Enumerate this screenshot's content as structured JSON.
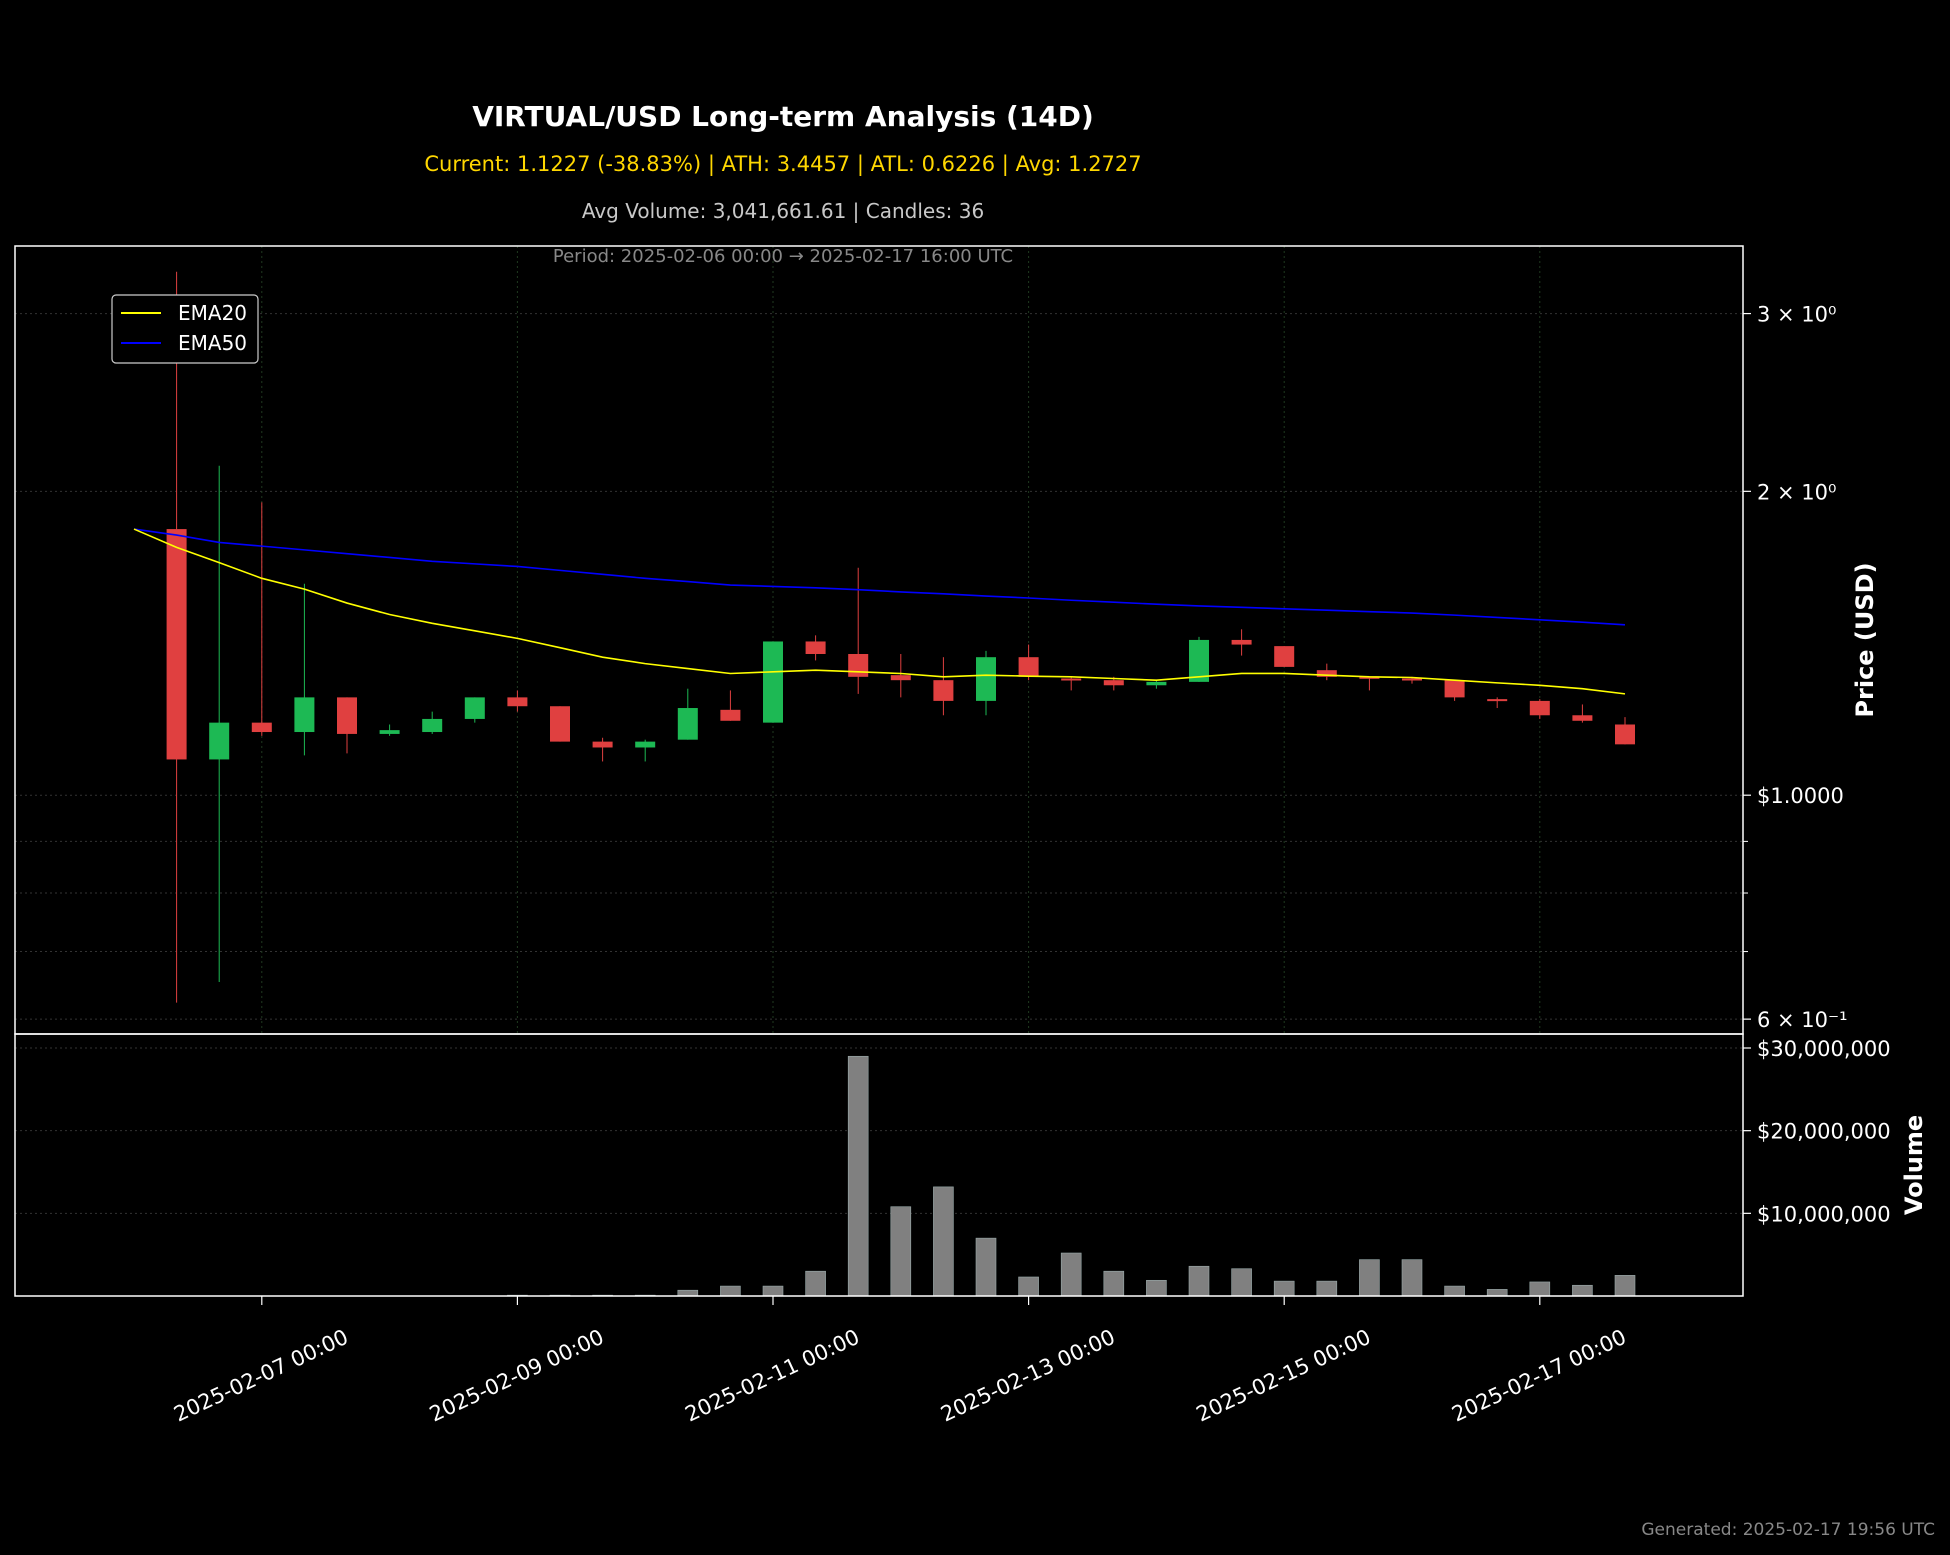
{
  "header": {
    "title": "VIRTUAL/USD Long-term Analysis (14D)",
    "stats": "Current: 1.1227 (-38.83%) | ATH: 3.4457 | ATL: 0.6226 | Avg: 1.2727",
    "volume_info": "Avg Volume: 3,041,661.61 | Candles: 36",
    "period": "Period: 2025-02-06 00:00 → 2025-02-17 16:00 UTC"
  },
  "footer": {
    "generated": "Generated: 2025-02-17 19:56 UTC"
  },
  "chart_data": [
    {
      "type": "candlestick",
      "ylabel": "Price (USD)",
      "yscale": "log",
      "ylim": [
        0.58,
        3.5
      ],
      "ytick_labels": [
        "$1.0000",
        "6 × 10⁻¹",
        "2 × 10⁰",
        "3 × 10⁰"
      ],
      "xtick_labels": [
        "2025-02-07 00:00",
        "2025-02-09 00:00",
        "2025-02-11 00:00",
        "2025-02-13 00:00",
        "2025-02-15 00:00",
        "2025-02-17 00:00"
      ],
      "legend": {
        "position": "top-left",
        "entries": [
          {
            "name": "EMA20",
            "color": "#ffff00"
          },
          {
            "name": "EMA50",
            "color": "#0000ff"
          }
        ]
      },
      "colors": {
        "up": "#1db954",
        "down": "#e04040"
      },
      "candles": [
        {
          "t": "2025-02-06 00:00",
          "o": null,
          "h": null,
          "l": null,
          "c": null
        },
        {
          "t": "2025-02-06 08:00",
          "o": 1.835,
          "h": 3.3,
          "l": 0.623,
          "c": 1.085
        },
        {
          "t": "2025-02-06 16:00",
          "o": 1.085,
          "h": 2.12,
          "l": 0.653,
          "c": 1.18
        },
        {
          "t": "2025-02-07 00:00",
          "o": 1.18,
          "h": 1.95,
          "l": 1.145,
          "c": 1.155
        },
        {
          "t": "2025-02-07 08:00",
          "o": 1.155,
          "h": 1.62,
          "l": 1.095,
          "c": 1.25
        },
        {
          "t": "2025-02-07 16:00",
          "o": 1.25,
          "h": 1.25,
          "l": 1.1,
          "c": 1.15
        },
        {
          "t": "2025-02-08 00:00",
          "o": 1.15,
          "h": 1.175,
          "l": 1.145,
          "c": 1.16
        },
        {
          "t": "2025-02-08 08:00",
          "o": 1.155,
          "h": 1.21,
          "l": 1.15,
          "c": 1.19
        },
        {
          "t": "2025-02-08 16:00",
          "o": 1.19,
          "h": 1.25,
          "l": 1.18,
          "c": 1.25
        },
        {
          "t": "2025-02-09 00:00",
          "o": 1.25,
          "h": 1.27,
          "l": 1.21,
          "c": 1.225
        },
        {
          "t": "2025-02-09 08:00",
          "o": 1.225,
          "h": 1.225,
          "l": 1.13,
          "c": 1.13
        },
        {
          "t": "2025-02-09 16:00",
          "o": 1.13,
          "h": 1.14,
          "l": 1.08,
          "c": 1.115
        },
        {
          "t": "2025-02-10 00:00",
          "o": 1.115,
          "h": 1.135,
          "l": 1.08,
          "c": 1.13
        },
        {
          "t": "2025-02-10 08:00",
          "o": 1.135,
          "h": 1.275,
          "l": 1.135,
          "c": 1.22
        },
        {
          "t": "2025-02-10 16:00",
          "o": 1.215,
          "h": 1.27,
          "l": 1.185,
          "c": 1.185
        },
        {
          "t": "2025-02-11 00:00",
          "o": 1.18,
          "h": 1.42,
          "l": 1.18,
          "c": 1.42
        },
        {
          "t": "2025-02-11 08:00",
          "o": 1.42,
          "h": 1.44,
          "l": 1.36,
          "c": 1.38
        },
        {
          "t": "2025-02-11 16:00",
          "o": 1.38,
          "h": 1.68,
          "l": 1.26,
          "c": 1.31
        },
        {
          "t": "2025-02-12 00:00",
          "o": 1.315,
          "h": 1.38,
          "l": 1.25,
          "c": 1.3
        },
        {
          "t": "2025-02-12 08:00",
          "o": 1.3,
          "h": 1.37,
          "l": 1.2,
          "c": 1.24
        },
        {
          "t": "2025-02-12 16:00",
          "o": 1.24,
          "h": 1.39,
          "l": 1.2,
          "c": 1.37
        },
        {
          "t": "2025-02-13 00:00",
          "o": 1.37,
          "h": 1.41,
          "l": 1.3,
          "c": 1.31
        },
        {
          "t": "2025-02-13 08:00",
          "o": 1.305,
          "h": 1.31,
          "l": 1.27,
          "c": 1.3
        },
        {
          "t": "2025-02-13 16:00",
          "o": 1.3,
          "h": 1.31,
          "l": 1.27,
          "c": 1.285
        },
        {
          "t": "2025-02-14 00:00",
          "o": 1.285,
          "h": 1.3,
          "l": 1.275,
          "c": 1.295
        },
        {
          "t": "2025-02-14 08:00",
          "o": 1.295,
          "h": 1.435,
          "l": 1.295,
          "c": 1.425
        },
        {
          "t": "2025-02-14 16:00",
          "o": 1.425,
          "h": 1.46,
          "l": 1.375,
          "c": 1.41
        },
        {
          "t": "2025-02-15 00:00",
          "o": 1.405,
          "h": 1.405,
          "l": 1.34,
          "c": 1.34
        },
        {
          "t": "2025-02-15 08:00",
          "o": 1.33,
          "h": 1.35,
          "l": 1.3,
          "c": 1.31
        },
        {
          "t": "2025-02-15 16:00",
          "o": 1.31,
          "h": 1.31,
          "l": 1.27,
          "c": 1.305
        },
        {
          "t": "2025-02-16 00:00",
          "o": 1.305,
          "h": 1.31,
          "l": 1.29,
          "c": 1.3
        },
        {
          "t": "2025-02-16 08:00",
          "o": 1.3,
          "h": 1.3,
          "l": 1.24,
          "c": 1.25
        },
        {
          "t": "2025-02-16 16:00",
          "o": 1.245,
          "h": 1.25,
          "l": 1.22,
          "c": 1.24
        },
        {
          "t": "2025-02-17 00:00",
          "o": 1.24,
          "h": 1.245,
          "l": 1.19,
          "c": 1.2
        },
        {
          "t": "2025-02-17 08:00",
          "o": 1.2,
          "h": 1.23,
          "l": 1.18,
          "c": 1.185
        },
        {
          "t": "2025-02-17 16:00",
          "o": 1.175,
          "h": 1.195,
          "l": 1.123,
          "c": 1.123
        }
      ],
      "ema20": [
        1.835,
        1.76,
        1.7,
        1.64,
        1.6,
        1.55,
        1.51,
        1.48,
        1.455,
        1.43,
        1.4,
        1.37,
        1.35,
        1.335,
        1.32,
        1.325,
        1.33,
        1.325,
        1.32,
        1.31,
        1.315,
        1.312,
        1.31,
        1.305,
        1.3,
        1.31,
        1.32,
        1.32,
        1.315,
        1.31,
        1.308,
        1.3,
        1.292,
        1.285,
        1.275,
        1.26
      ],
      "ema50": [
        1.835,
        1.81,
        1.78,
        1.765,
        1.75,
        1.735,
        1.72,
        1.705,
        1.695,
        1.685,
        1.67,
        1.655,
        1.64,
        1.628,
        1.615,
        1.61,
        1.605,
        1.598,
        1.59,
        1.583,
        1.575,
        1.568,
        1.56,
        1.553,
        1.546,
        1.54,
        1.535,
        1.53,
        1.525,
        1.52,
        1.515,
        1.508,
        1.5,
        1.492,
        1.484,
        1.475
      ]
    },
    {
      "type": "bar",
      "ylabel": "Volume",
      "ylim": [
        0,
        30000000
      ],
      "ytick_labels": [
        "$10,000,000",
        "$20,000,000",
        "$30,000,000"
      ],
      "color": "#808080",
      "values": [
        0,
        0,
        0,
        0,
        0,
        0,
        0,
        0,
        0,
        100000,
        100000,
        100000,
        100000,
        700000,
        1200000,
        1200000,
        3000000,
        29000000,
        10800000,
        13200000,
        7000000,
        2300000,
        5200000,
        3000000,
        1900000,
        3600000,
        3300000,
        1800000,
        1800000,
        4400000,
        4400000,
        1200000,
        800000,
        1700000,
        1300000,
        2500000
      ]
    }
  ]
}
